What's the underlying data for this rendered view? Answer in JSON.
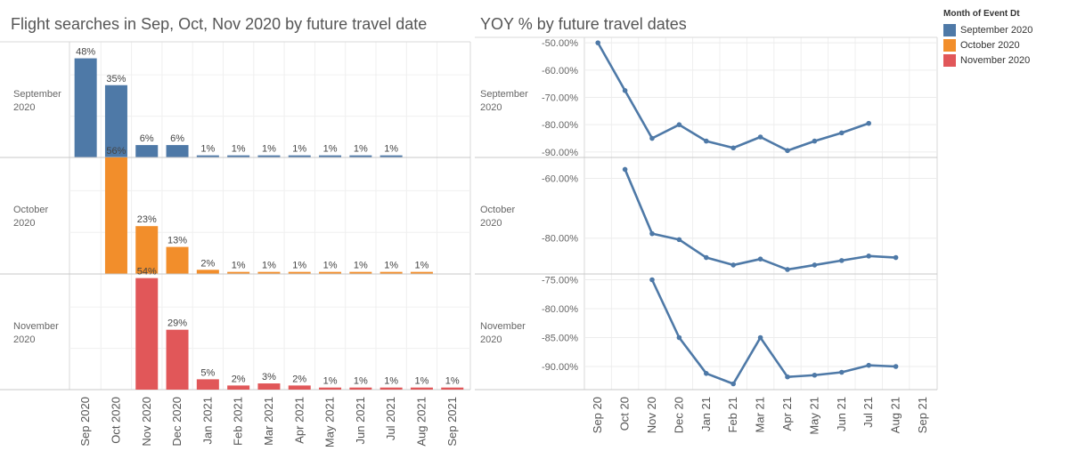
{
  "titles": {
    "left": "Flight searches in  Sep, Oct, Nov 2020 by future travel date",
    "right": "YOY % by future travel dates"
  },
  "legend": {
    "title": "Month of Event Dt",
    "items": [
      {
        "label": "September 2020",
        "color": "#4e79a7"
      },
      {
        "label": "October 2020",
        "color": "#f28e2b"
      },
      {
        "label": "November 2020",
        "color": "#e15759"
      }
    ]
  },
  "chart_data": [
    {
      "type": "bar",
      "title": "Flight searches in  Sep, Oct, Nov 2020 by future travel date",
      "categories": [
        "Sep 2020",
        "Oct 2020",
        "Nov 2020",
        "Dec 2020",
        "Jan 2021",
        "Feb 2021",
        "Mar 2021",
        "Apr 2021",
        "May 2021",
        "Jun 2021",
        "Jul 2021",
        "Aug 2021",
        "Sep 2021"
      ],
      "rows": [
        "September 2020",
        "October 2020",
        "November 2020"
      ],
      "ylim": [
        0,
        0.56
      ],
      "grid": true,
      "series": [
        {
          "name": "September 2020",
          "color": "#4e79a7",
          "values": [
            0.48,
            0.35,
            0.06,
            0.06,
            0.01,
            0.01,
            0.01,
            0.01,
            0.01,
            0.01,
            0.01,
            null,
            null
          ],
          "labels": [
            "48%",
            "35%",
            "6%",
            "6%",
            "1%",
            "1%",
            "1%",
            "1%",
            "1%",
            "1%",
            "1%",
            "",
            ""
          ]
        },
        {
          "name": "October 2020",
          "color": "#f28e2b",
          "values": [
            null,
            0.56,
            0.23,
            0.13,
            0.02,
            0.01,
            0.01,
            0.01,
            0.01,
            0.01,
            0.01,
            0.01,
            null
          ],
          "labels": [
            "",
            "56%",
            "23%",
            "13%",
            "2%",
            "1%",
            "1%",
            "1%",
            "1%",
            "1%",
            "1%",
            "1%",
            ""
          ]
        },
        {
          "name": "November 2020",
          "color": "#e15759",
          "values": [
            null,
            null,
            0.54,
            0.29,
            0.05,
            0.02,
            0.03,
            0.02,
            0.01,
            0.01,
            0.01,
            0.01,
            0.01
          ],
          "labels": [
            "",
            "",
            "54%",
            "29%",
            "5%",
            "2%",
            "3%",
            "2%",
            "1%",
            "1%",
            "1%",
            "1%",
            "1%"
          ]
        }
      ]
    },
    {
      "type": "line",
      "title": "YOY % by future travel dates",
      "x": [
        "Sep 20",
        "Oct 20",
        "Nov 20",
        "Dec 20",
        "Jan 21",
        "Feb 21",
        "Mar 21",
        "Apr 21",
        "May 21",
        "Jun 21",
        "Jul 21",
        "Aug 21",
        "Sep 21"
      ],
      "rows": [
        "September 2020",
        "October 2020",
        "November 2020"
      ],
      "line_color": "#4e79a7",
      "grid": true,
      "panels": [
        {
          "row": "September 2020",
          "ylim": [
            -92,
            -48
          ],
          "yticks": [
            -50,
            -60,
            -70,
            -80,
            -90
          ],
          "ytick_labels": [
            "-50.00%",
            "-60.00%",
            "-70.00%",
            "-80.00%",
            "-90.00%"
          ],
          "values": [
            -50,
            -67.5,
            -85,
            -80,
            -86,
            -88.5,
            -84.5,
            -89.5,
            -86,
            -83,
            -79.5,
            null,
            null
          ]
        },
        {
          "row": "October 2020",
          "ylim": [
            -92,
            -53
          ],
          "yticks": [
            -60,
            -80
          ],
          "ytick_labels": [
            "-60.00%",
            "-80.00%"
          ],
          "values": [
            null,
            -57,
            -78.5,
            -80.5,
            -86.5,
            -89,
            -87,
            -90.5,
            -89,
            -87.5,
            -86,
            -86.5,
            null
          ]
        },
        {
          "row": "November 2020",
          "ylim": [
            -94,
            -74
          ],
          "yticks": [
            -75,
            -80,
            -85,
            -90
          ],
          "ytick_labels": [
            "-75.00%",
            "-80.00%",
            "-85.00%",
            "-90.00%"
          ],
          "values": [
            null,
            null,
            -75,
            -85,
            -91.2,
            -93,
            -85,
            -91.8,
            -91.5,
            -91,
            -89.8,
            -90,
            null
          ]
        }
      ]
    }
  ]
}
